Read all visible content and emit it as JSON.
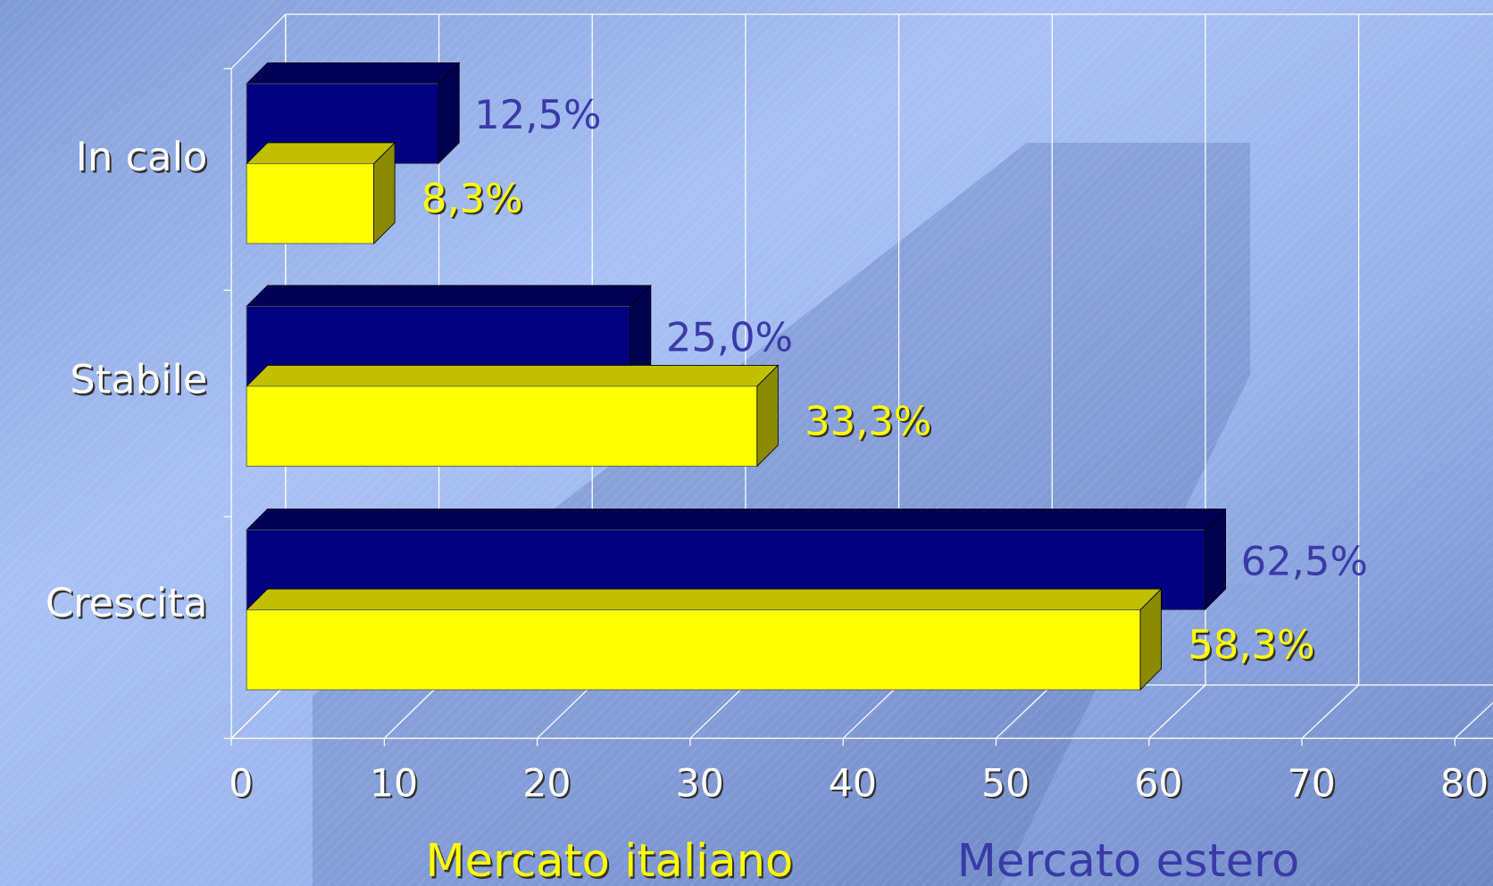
{
  "chart_data": {
    "type": "bar3d-horizontal",
    "categories": [
      "In calo",
      "Stabile",
      "Crescita"
    ],
    "series": [
      {
        "name": "Mercato estero",
        "color": "#000080",
        "values": [
          12.5,
          25,
          62.5
        ],
        "value_labels": [
          "12,5%",
          "25,0%",
          "62,5%"
        ]
      },
      {
        "name": "Mercato italiano",
        "color": "#ffff00",
        "values": [
          8.3,
          33.3,
          58.3
        ],
        "value_labels": [
          "8,3%",
          "33,3%",
          "58,3%"
        ]
      }
    ],
    "xlim": [
      0,
      80
    ],
    "xticks": [
      0,
      10,
      20,
      30,
      40,
      50,
      60,
      70,
      80
    ],
    "grid": true,
    "legend": "bottom"
  }
}
